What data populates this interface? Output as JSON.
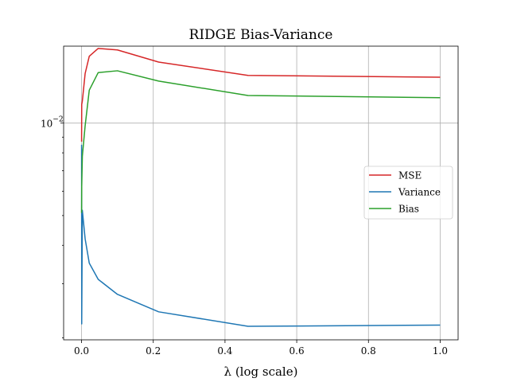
{
  "chart_data": {
    "type": "line",
    "title": "RIDGE Bias-Variance",
    "xlabel": "λ (log scale)",
    "ylabel": "",
    "xlim": [
      -0.05,
      1.05
    ],
    "ylim": [
      0.00197,
      0.0178
    ],
    "y_scale": "log",
    "grid": true,
    "legend_position": "center-right",
    "x_ticks": [
      0.0,
      0.2,
      0.4,
      0.6,
      0.8,
      1.0
    ],
    "x_tick_labels": [
      "0.0",
      "0.2",
      "0.4",
      "0.6",
      "0.8",
      "1.0"
    ],
    "y_ticks": [
      0.01
    ],
    "y_tick_labels": [
      "10",
      "−2"
    ],
    "x": [
      0.0001,
      0.00046,
      0.0022,
      0.01,
      0.0215,
      0.0464,
      0.1,
      0.215,
      0.464,
      1.0
    ],
    "series": [
      {
        "name": "MSE",
        "color": "#d62728",
        "values": [
          0.0087,
          0.0115,
          0.0118,
          0.0145,
          0.0165,
          0.0175,
          0.0173,
          0.0158,
          0.0143,
          0.0141
        ]
      },
      {
        "name": "Variance",
        "color": "#1f77b4",
        "values": [
          0.0085,
          0.00222,
          0.0052,
          0.0042,
          0.0035,
          0.0031,
          0.00277,
          0.00243,
          0.00218,
          0.0022
        ]
      },
      {
        "name": "Bias",
        "color": "#2ca02c",
        "values": [
          0.0051,
          0.0062,
          0.0078,
          0.0098,
          0.0128,
          0.0146,
          0.0148,
          0.0137,
          0.0123,
          0.0121
        ]
      }
    ]
  }
}
